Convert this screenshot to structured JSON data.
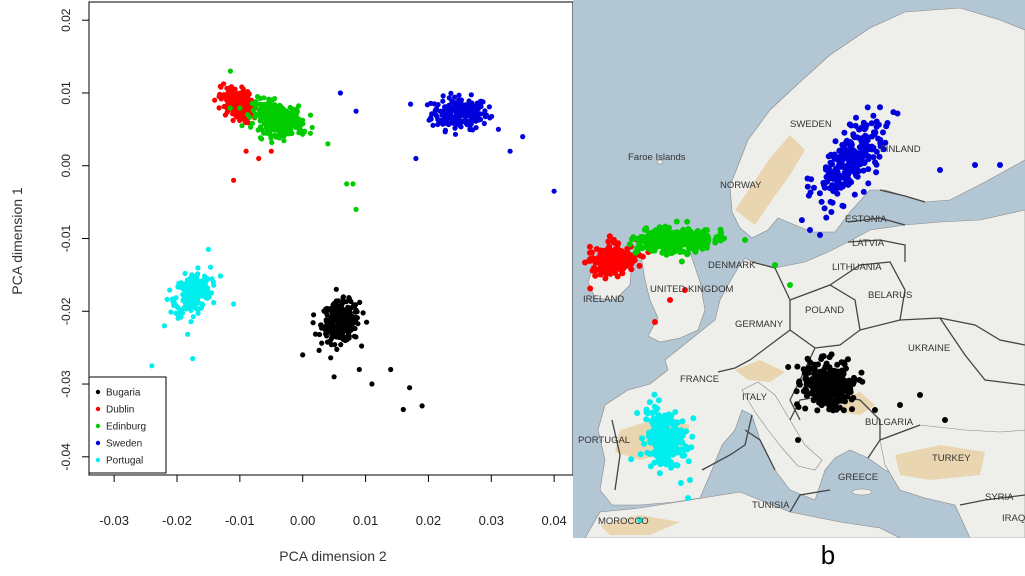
{
  "chart_data": [
    {
      "type": "scatter",
      "title": "",
      "xlabel": "PCA dimension 2",
      "ylabel": "PCA dimension 1",
      "xlim": [
        -0.034,
        0.043
      ],
      "ylim": [
        -0.0425,
        0.0225
      ],
      "xticks": [
        "-0.03",
        "-0.02",
        "-0.01",
        "0.00",
        "0.01",
        "0.02",
        "0.03",
        "0.04"
      ],
      "xtick_values": [
        -0.03,
        -0.02,
        -0.01,
        0.0,
        0.01,
        0.02,
        0.03,
        0.04
      ],
      "yticks": [
        "-0.04",
        "-0.03",
        "-0.02",
        "-0.01",
        "0.00",
        "0.01",
        "0.02"
      ],
      "ytick_values": [
        -0.04,
        -0.03,
        -0.02,
        -0.01,
        0.0,
        0.01,
        0.02
      ],
      "grid": false,
      "legend_position": "bottom-left",
      "series": [
        {
          "name": "Bugaria",
          "color": "#000000",
          "center": [
            0.006,
            -0.0215
          ],
          "spread": [
            0.003,
            0.0028
          ],
          "tilt": 0.1,
          "n": 260,
          "outliers": [
            [
              0.009,
              -0.028
            ],
            [
              0.011,
              -0.03
            ],
            [
              0.014,
              -0.028
            ],
            [
              0.016,
              -0.0335
            ],
            [
              0.019,
              -0.033
            ],
            [
              0.017,
              -0.0305
            ],
            [
              0.0,
              -0.026
            ],
            [
              0.005,
              -0.029
            ]
          ]
        },
        {
          "name": "Dublin",
          "color": "#ff0000",
          "center": [
            -0.0105,
            0.0085
          ],
          "spread": [
            0.0025,
            0.0022
          ],
          "tilt": -0.35,
          "n": 200,
          "outliers": [
            [
              -0.011,
              -0.002
            ],
            [
              -0.014,
              0.009
            ],
            [
              -0.009,
              0.002
            ],
            [
              -0.007,
              0.001
            ],
            [
              -0.005,
              0.002
            ]
          ]
        },
        {
          "name": "Edinburg",
          "color": "#00cc00",
          "center": [
            -0.004,
            0.0065
          ],
          "spread": [
            0.004,
            0.0022
          ],
          "tilt": -0.3,
          "n": 280,
          "outliers": [
            [
              0.007,
              -0.0025
            ],
            [
              0.008,
              -0.0025
            ],
            [
              0.0085,
              -0.006
            ],
            [
              0.004,
              0.003
            ],
            [
              -0.0115,
              0.013
            ]
          ]
        },
        {
          "name": "Sweden",
          "color": "#0000dd",
          "center": [
            0.025,
            0.0072
          ],
          "spread": [
            0.0045,
            0.0022
          ],
          "tilt": 0.0,
          "n": 220,
          "outliers": [
            [
              0.04,
              -0.0035
            ],
            [
              0.0085,
              0.0075
            ],
            [
              0.006,
              0.01
            ],
            [
              0.033,
              0.002
            ],
            [
              0.035,
              0.004
            ],
            [
              0.018,
              0.001
            ]
          ]
        },
        {
          "name": "Portugal",
          "color": "#00eeee",
          "center": [
            -0.0175,
            -0.0175
          ],
          "spread": [
            0.0028,
            0.0027
          ],
          "tilt": 0.3,
          "n": 240,
          "outliers": [
            [
              -0.024,
              -0.0275
            ],
            [
              -0.015,
              -0.0115
            ],
            [
              -0.0175,
              -0.0265
            ],
            [
              -0.011,
              -0.019
            ],
            [
              -0.022,
              -0.022
            ]
          ]
        }
      ],
      "legend_labels": [
        "Bugaria",
        "Dublin",
        "Edinburg",
        "Sweden",
        "Portugal"
      ]
    },
    {
      "type": "map-scatter",
      "title": "",
      "region": "Europe",
      "place_labels": [
        "Faroe Islands",
        "SWEDEN",
        "FINLAND",
        "NORWAY",
        "ESTONIA",
        "LATVIA",
        "LITHUANIA",
        "DENMARK",
        "BELARUS",
        "IRELAND",
        "UNITED KINGDOM",
        "POLAND",
        "GERMANY",
        "UKRAINE",
        "FRANCE",
        "ITALY",
        "BULGARIA",
        "PORTUGAL",
        "TURKEY",
        "GREECE",
        "SYRIA",
        "TUNISIA",
        "MOROCCO",
        "IRAQ"
      ],
      "clusters": [
        {
          "name": "Bugaria",
          "color": "#000000"
        },
        {
          "name": "Dublin",
          "color": "#ff0000"
        },
        {
          "name": "Edinburg",
          "color": "#00cc00"
        },
        {
          "name": "Sweden",
          "color": "#0000dd"
        },
        {
          "name": "Portugal",
          "color": "#00eeee"
        }
      ]
    }
  ],
  "colors": {
    "sea": "#b3c6d4",
    "land": "#eeeeea",
    "relief": "#e9d6b0",
    "border": "#444444"
  },
  "caption_letter": "b"
}
